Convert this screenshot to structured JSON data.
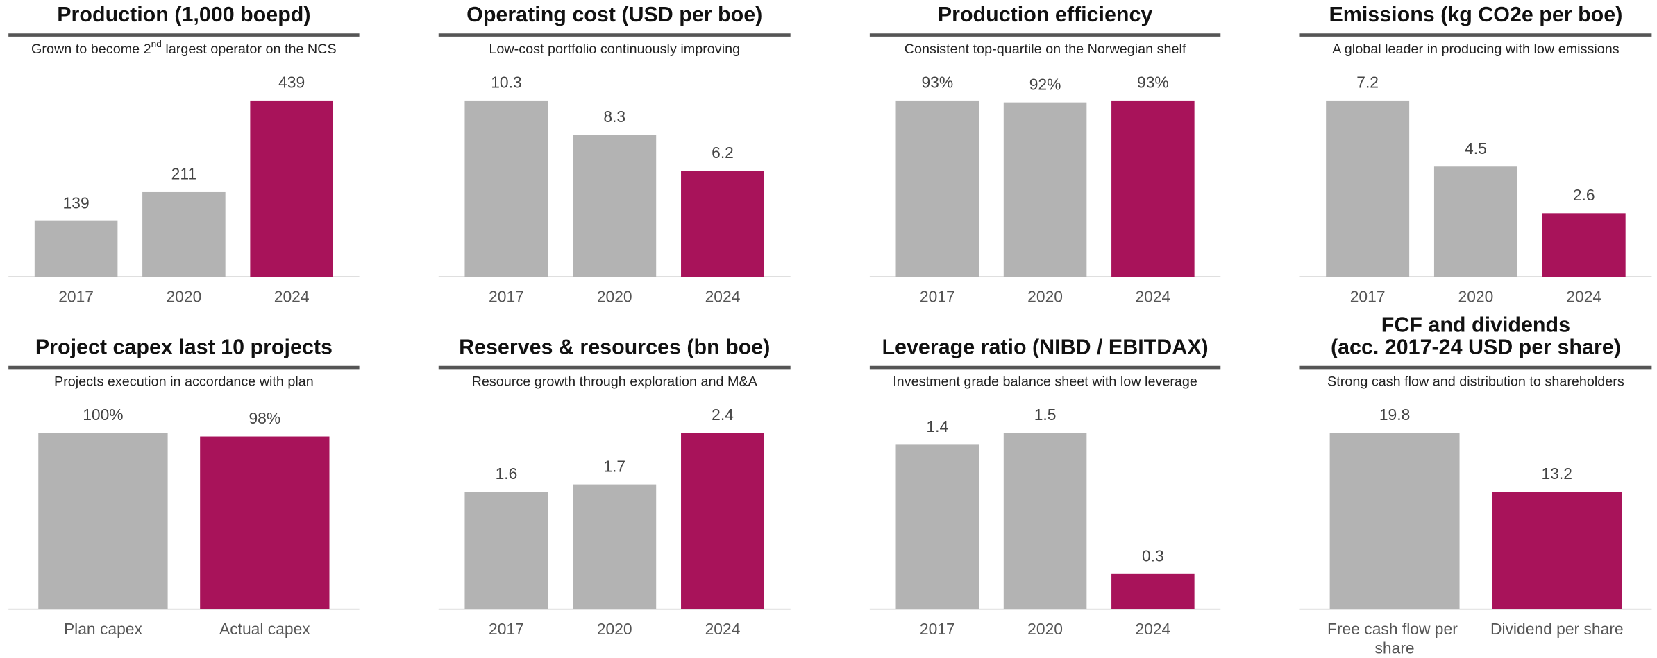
{
  "chart_data": [
    {
      "type": "bar",
      "title": "Production (1,000 boepd)",
      "subtitle": "Grown to become 2",
      "subtitle_sup": "nd",
      "subtitle_end": " largest operator on the NCS",
      "categories": [
        "2017",
        "2020",
        "2024"
      ],
      "values": [
        139,
        211,
        439
      ],
      "colors": [
        "#b3b3b3",
        "#b3b3b3",
        "#a8135a"
      ]
    },
    {
      "type": "bar",
      "title": "Operating cost (USD per boe)",
      "subtitle": "Low-cost portfolio continuously improving",
      "categories": [
        "2017",
        "2020",
        "2024"
      ],
      "values": [
        10.3,
        8.3,
        6.2
      ],
      "colors": [
        "#b3b3b3",
        "#b3b3b3",
        "#a8135a"
      ]
    },
    {
      "type": "bar",
      "title": "Production efficiency",
      "subtitle": "Consistent top-quartile on the Norwegian shelf",
      "categories": [
        "2017",
        "2020",
        "2024"
      ],
      "values": [
        93,
        92,
        93
      ],
      "value_labels": [
        "93%",
        "92%",
        "93%"
      ],
      "colors": [
        "#b3b3b3",
        "#b3b3b3",
        "#a8135a"
      ]
    },
    {
      "type": "bar",
      "title": "Emissions (kg CO2e per boe)",
      "subtitle": "A global leader in producing with low emissions",
      "categories": [
        "2017",
        "2020",
        "2024"
      ],
      "values": [
        7.2,
        4.5,
        2.6
      ],
      "colors": [
        "#b3b3b3",
        "#b3b3b3",
        "#a8135a"
      ]
    },
    {
      "type": "bar",
      "title": "Project capex last 10 projects",
      "subtitle": "Projects execution in accordance with plan",
      "categories": [
        "Plan capex",
        "Actual capex"
      ],
      "values": [
        100,
        98
      ],
      "value_labels": [
        "100%",
        "98%"
      ],
      "colors": [
        "#b3b3b3",
        "#a8135a"
      ]
    },
    {
      "type": "bar",
      "title": "Reserves & resources (bn boe)",
      "subtitle": "Resource growth through exploration and M&A",
      "categories": [
        "2017",
        "2020",
        "2024"
      ],
      "values": [
        1.6,
        1.7,
        2.4
      ],
      "colors": [
        "#b3b3b3",
        "#b3b3b3",
        "#a8135a"
      ]
    },
    {
      "type": "bar",
      "title": "Leverage ratio (NIBD / EBITDAX)",
      "subtitle": "Investment grade balance sheet with low leverage",
      "categories": [
        "2017",
        "2020",
        "2024"
      ],
      "values": [
        1.4,
        1.5,
        0.3
      ],
      "colors": [
        "#b3b3b3",
        "#b3b3b3",
        "#a8135a"
      ]
    },
    {
      "type": "bar",
      "title": [
        "FCF and dividends",
        "(acc. 2017-24 USD per share)"
      ],
      "subtitle": "Strong cash flow and distribution to shareholders",
      "categories": [
        "Free cash flow per share",
        "Dividend per share"
      ],
      "values": [
        19.8,
        13.2
      ],
      "colors": [
        "#b3b3b3",
        "#a8135a"
      ]
    }
  ]
}
